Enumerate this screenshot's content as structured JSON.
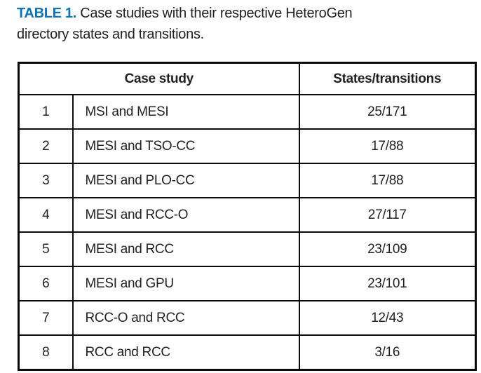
{
  "colors": {
    "caption_label_blue": "#0e74b8",
    "text": "#231f20",
    "border": "#0a0a0a",
    "background": "#ffffff"
  },
  "caption": {
    "label": "TABLE 1.",
    "line1": "Case studies with their respective HeteroGen",
    "line2": "directory states and transitions."
  },
  "table": {
    "headers": {
      "case_study": "Case study",
      "states_transitions": "States/transitions"
    },
    "rows": [
      {
        "num": "1",
        "case": "MSI and MESI",
        "value": "25/171"
      },
      {
        "num": "2",
        "case": "MESI and TSO-CC",
        "value": "17/88"
      },
      {
        "num": "3",
        "case": "MESI and PLO-CC",
        "value": "17/88"
      },
      {
        "num": "4",
        "case": "MESI and RCC-O",
        "value": "27/117"
      },
      {
        "num": "5",
        "case": "MESI and RCC",
        "value": "23/109"
      },
      {
        "num": "6",
        "case": "MESI and GPU",
        "value": "23/101"
      },
      {
        "num": "7",
        "case": "RCC-O and RCC",
        "value": "12/43"
      },
      {
        "num": "8",
        "case": "RCC and RCC",
        "value": "3/16"
      }
    ]
  }
}
